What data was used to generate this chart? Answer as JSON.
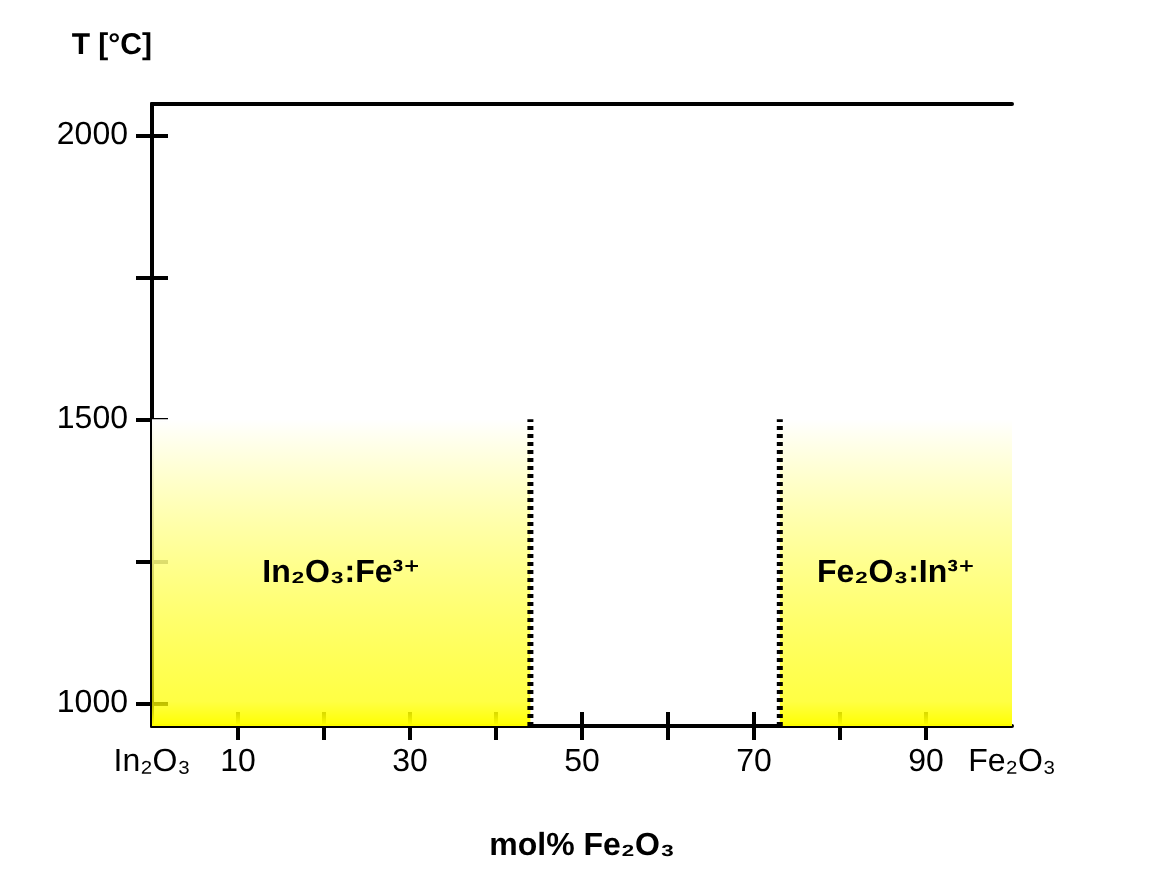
{
  "chart_data": {
    "type": "area",
    "ylabel": "T [°C]",
    "xlabel": "mol% Fe₂O₃",
    "xlim": [
      0,
      100
    ],
    "xticks": [
      {
        "value": 0,
        "label": "In₂O₃"
      },
      10,
      {
        "value": 20,
        "label": null
      },
      30,
      {
        "value": 40,
        "label": null
      },
      50,
      {
        "value": 60,
        "label": null
      },
      70,
      {
        "value": 80,
        "label": null
      },
      90,
      {
        "value": 100,
        "label": "Fe₂O₃"
      }
    ],
    "ylim": [
      960,
      2055
    ],
    "yticks": [
      1000,
      {
        "value": 1250,
        "label": null
      },
      1500,
      {
        "value": 1750,
        "label": null
      },
      2000
    ],
    "series": [
      {
        "color": "#ffff00",
        "x": [
          0,
          44
        ],
        "values": [
          1500,
          1500
        ]
      },
      {
        "color": "#ffff00",
        "x": [
          73,
          100
        ],
        "values": [
          1500,
          1500
        ]
      },
      {
        "type": "line",
        "color": "#000000",
        "line_style": "dotted",
        "x": [
          44,
          44
        ],
        "values": [
          960,
          1500
        ]
      },
      {
        "type": "line",
        "color": "#000000",
        "line_style": "dotted",
        "x": [
          73,
          73
        ],
        "values": [
          960,
          1500
        ]
      }
    ],
    "annotations": [
      "In₂O₃:Fe³⁺",
      "Fe₂O₃:In³⁺"
    ],
    "grid": false,
    "marker": "none"
  }
}
